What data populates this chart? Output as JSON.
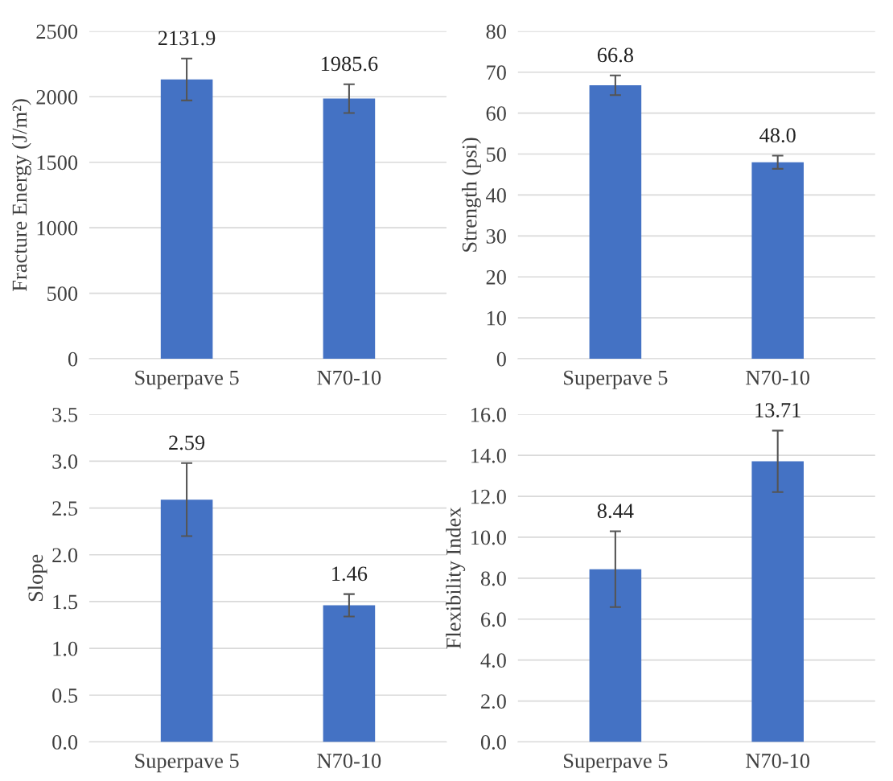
{
  "chart_data": [
    {
      "type": "bar",
      "ylabel": "Fracture Energy (J/m²)",
      "categories": [
        "Superpave 5",
        "N70-10"
      ],
      "values": [
        2131.9,
        1985.6
      ],
      "errors": [
        160,
        110
      ],
      "color": "#4472c4",
      "ylim": [
        0,
        2500
      ],
      "yticks": [
        0,
        500,
        1000,
        1500,
        2000,
        2500
      ],
      "grid": "y",
      "data_labels": true
    },
    {
      "type": "bar",
      "ylabel": "Strength (psi)",
      "categories": [
        "Superpave 5",
        "N70-10"
      ],
      "values": [
        66.8,
        48.0
      ],
      "value_labels": [
        "66.8",
        "48.0"
      ],
      "errors": [
        2.4,
        1.6
      ],
      "color": "#4472c4",
      "ylim": [
        0,
        80
      ],
      "yticks": [
        0,
        10,
        20,
        30,
        40,
        50,
        60,
        70,
        80
      ],
      "grid": "y"
    },
    {
      "type": "bar",
      "ylabel": "Slope",
      "categories": [
        "Superpave 5",
        "N70-10"
      ],
      "values": [
        2.59,
        1.46
      ],
      "errors": [
        0.39,
        0.12
      ],
      "color": "#4472c4",
      "ylim": [
        0,
        3.5
      ],
      "yticks": [
        {
          "value": 0,
          "label": "0.0"
        },
        0.5,
        {
          "value": 1,
          "label": "1.0"
        },
        1.5,
        {
          "value": 2,
          "label": "2.0"
        },
        2.5,
        {
          "value": 3,
          "label": "3.0"
        },
        3.5
      ],
      "grid": "y",
      "data_labels": true
    },
    {
      "type": "bar",
      "ylabel": "Flexibility Index",
      "categories": [
        "Superpave 5",
        "N70-10"
      ],
      "values": [
        8.44,
        13.71
      ],
      "errors": [
        1.85,
        1.5
      ],
      "color": "#4472c4",
      "ylim": [
        0,
        16
      ],
      "yticks": [
        {
          "value": 0,
          "label": "0.0"
        },
        {
          "value": 2,
          "label": "2.0"
        },
        {
          "value": 4,
          "label": "4.0"
        },
        {
          "value": 6,
          "label": "6.0"
        },
        {
          "value": 8,
          "label": "8.0"
        },
        {
          "value": 10,
          "label": "10.0"
        },
        {
          "value": 12,
          "label": "12.0"
        },
        {
          "value": 14,
          "label": "14.0"
        },
        {
          "value": 16,
          "label": "16.0"
        }
      ],
      "grid": "y",
      "data_labels": true
    }
  ]
}
